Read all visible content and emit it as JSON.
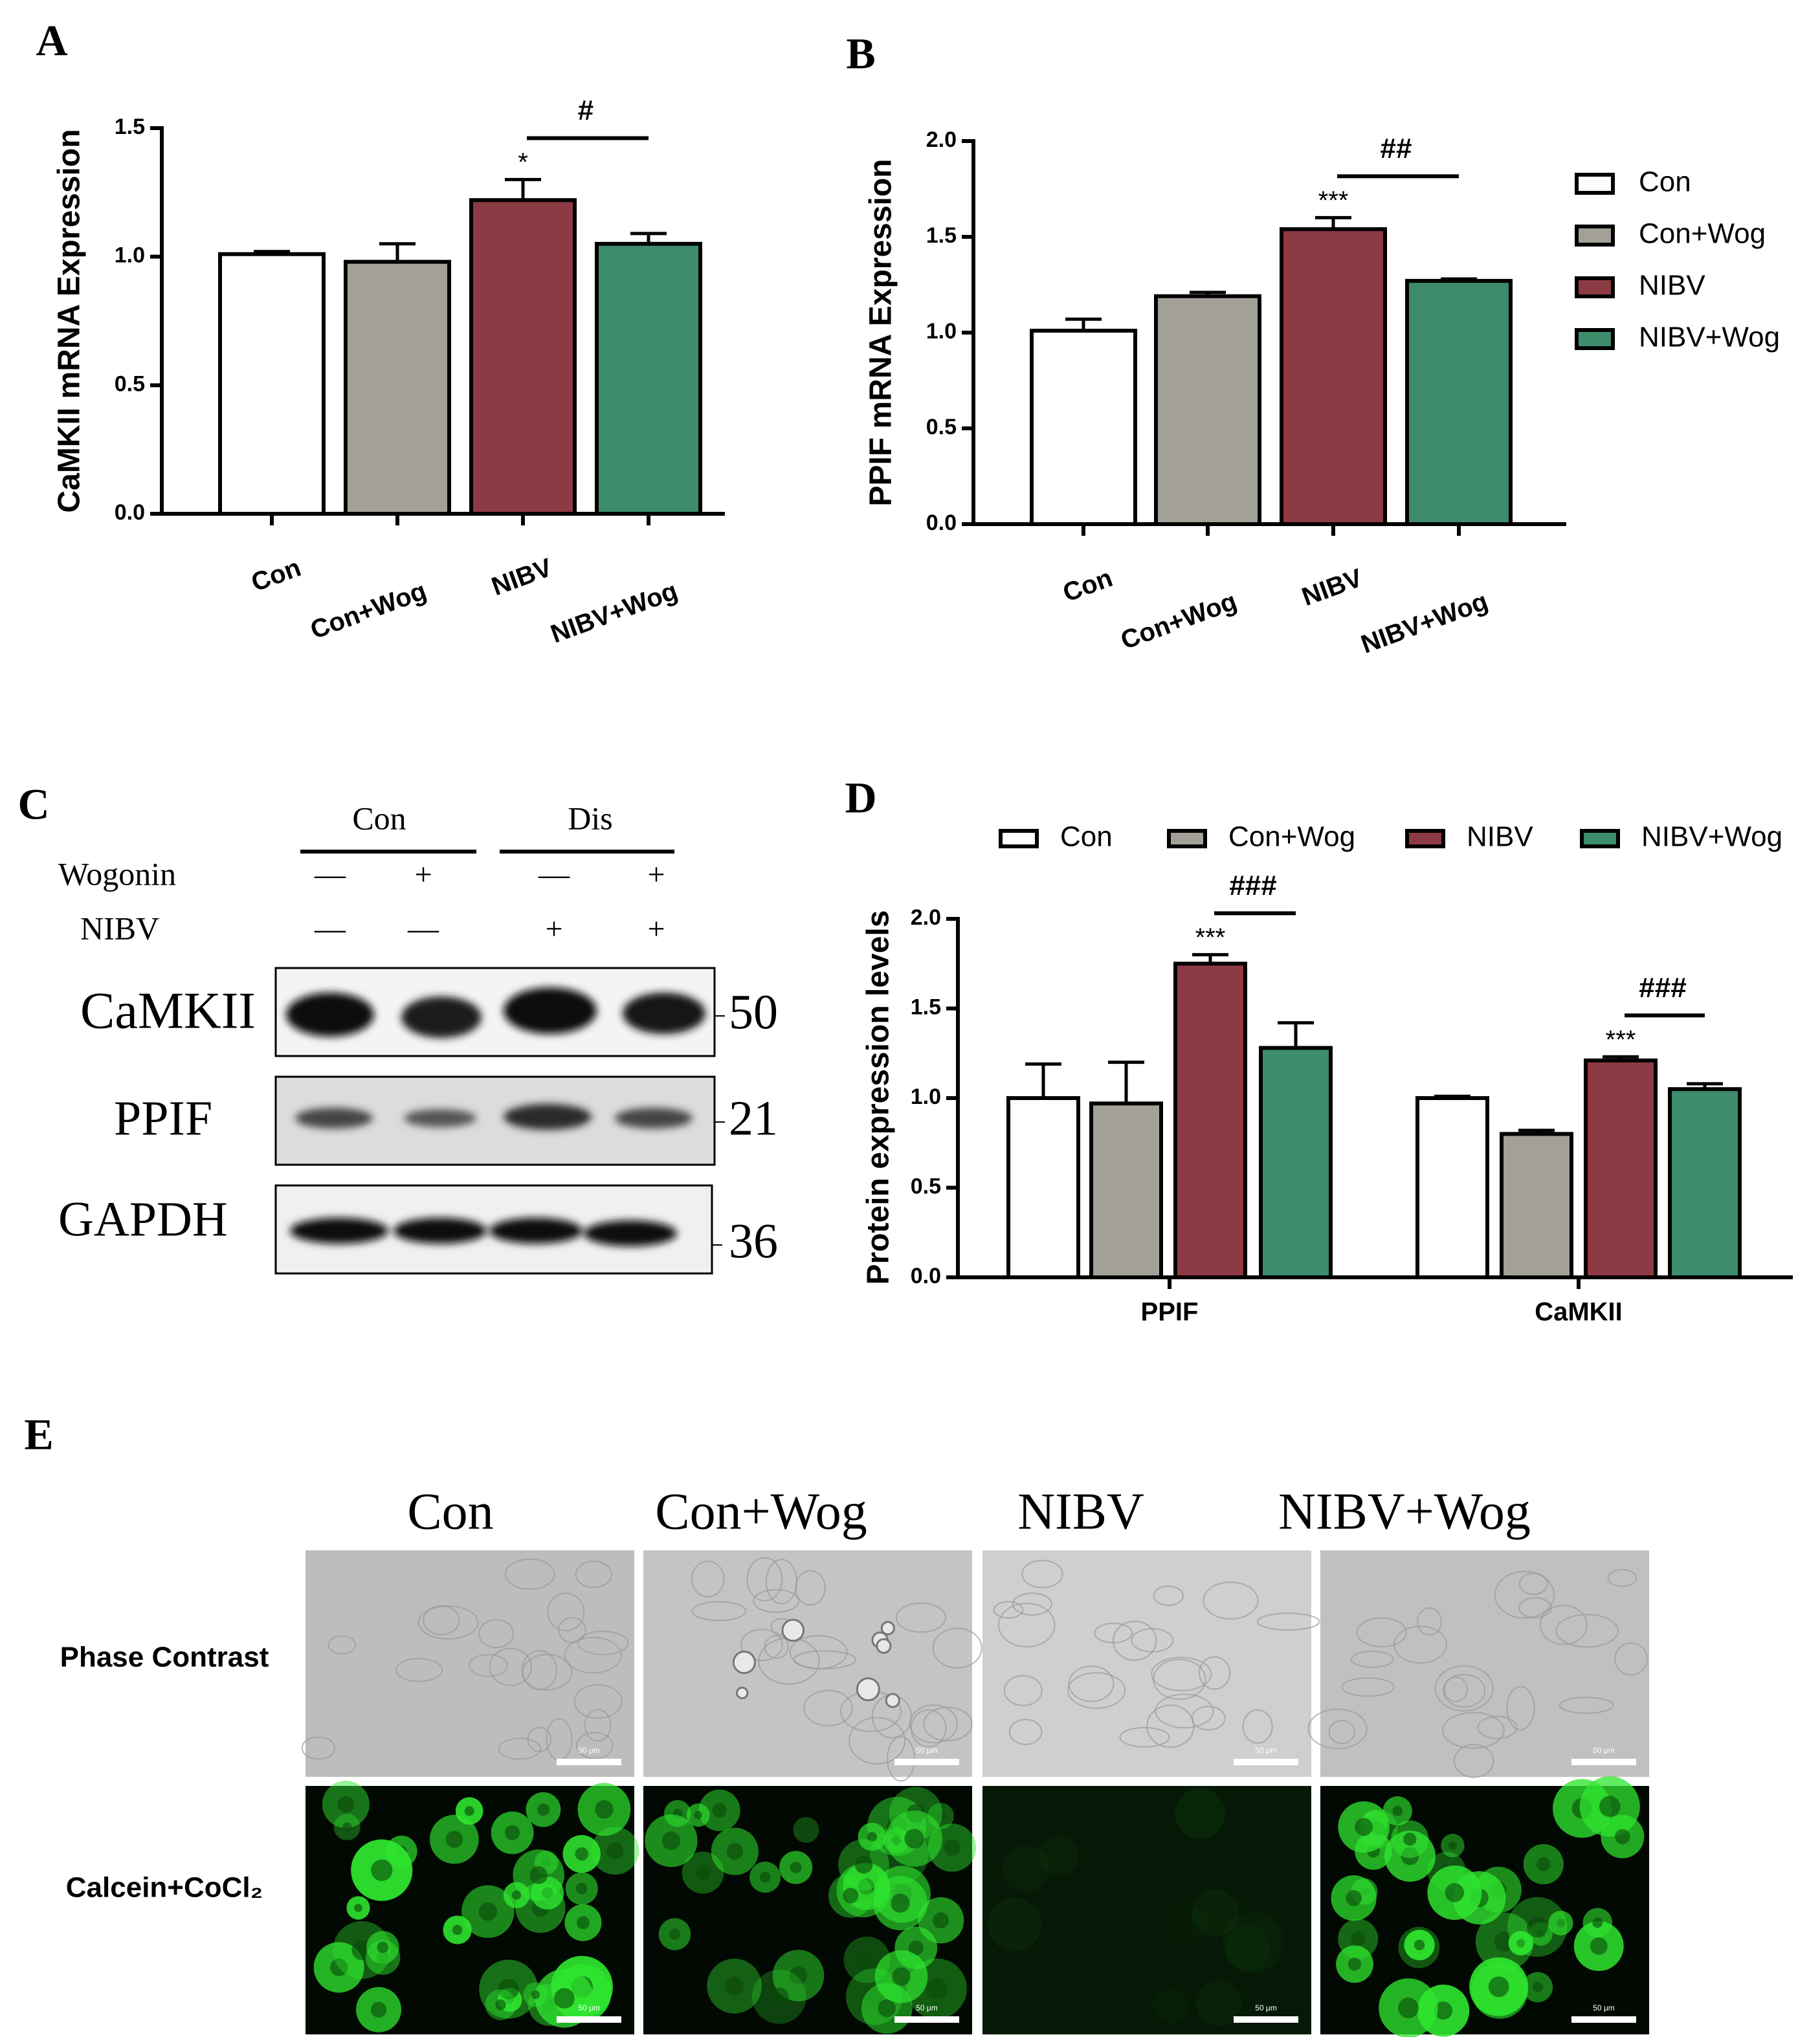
{
  "panel_labels": [
    "A",
    "B",
    "C",
    "D",
    "E"
  ],
  "chart_data": [
    {
      "type": "bar",
      "y_label": "CaMKII mRNA Expression",
      "categories": [
        "Con",
        "Con+Wog",
        "NIBV",
        "NIBV+Wog"
      ],
      "values": [
        1.01,
        0.98,
        1.22,
        1.05
      ],
      "errors": [
        0.01,
        0.07,
        0.08,
        0.04
      ],
      "colors": [
        "#ffffff",
        "#a3a197",
        "#8c3a43",
        "#3d8c6b"
      ],
      "ylim": [
        0,
        1.5
      ],
      "yticks": [
        {
          "value": 0,
          "label": "0.0"
        },
        {
          "value": 0.5,
          "label": "0.5"
        },
        {
          "value": 1,
          "label": "1.0"
        },
        {
          "value": 1.5,
          "label": "1.5"
        }
      ],
      "annotations": [
        {
          "text": "*",
          "over": "NIBV"
        },
        {
          "text": "#",
          "between": [
            "NIBV",
            "NIBV+Wog"
          ]
        }
      ]
    },
    {
      "type": "bar",
      "y_label": "PPIF mRNA Expression",
      "categories": [
        "Con",
        "Con+Wog",
        "NIBV",
        "NIBV+Wog"
      ],
      "values": [
        1.01,
        1.19,
        1.54,
        1.27
      ],
      "errors": [
        0.06,
        0.02,
        0.06,
        0.01
      ],
      "colors": [
        "#ffffff",
        "#a3a197",
        "#8c3a43",
        "#3d8c6b"
      ],
      "ylim": [
        0,
        2
      ],
      "yticks": [
        {
          "value": 0,
          "label": "0.0"
        },
        {
          "value": 0.5,
          "label": "0.5"
        },
        {
          "value": 1,
          "label": "1.0"
        },
        {
          "value": 1.5,
          "label": "1.5"
        },
        {
          "value": 2,
          "label": "2.0"
        }
      ],
      "legend": "right",
      "annotations": [
        {
          "text": "***",
          "over": "NIBV"
        },
        {
          "text": "##",
          "between": [
            "NIBV",
            "NIBV+Wog"
          ]
        }
      ]
    },
    {
      "type": "grouped_bar",
      "y_label": "Protein expression levels",
      "categories": [
        "PPIF",
        "CaMKII"
      ],
      "series": [
        {
          "name": "Con",
          "color": "#ffffff",
          "values": [
            1.0,
            1.0
          ],
          "errors": [
            0.19,
            0.01
          ]
        },
        {
          "name": "Con+Wog",
          "color": "#a3a197",
          "values": [
            0.97,
            0.8
          ],
          "errors": [
            0.23,
            0.02
          ]
        },
        {
          "name": "NIBV",
          "color": "#8c3a43",
          "values": [
            1.75,
            1.21
          ],
          "errors": [
            0.05,
            0.02
          ]
        },
        {
          "name": "NIBV+Wog",
          "color": "#3d8c6b",
          "values": [
            1.28,
            1.05
          ],
          "errors": [
            0.14,
            0.03
          ]
        }
      ],
      "ylim": [
        0,
        2
      ],
      "yticks": [
        {
          "value": 0,
          "label": "0.0"
        },
        {
          "value": 0.5,
          "label": "0.5"
        },
        {
          "value": 1,
          "label": "1.0"
        },
        {
          "value": 1.5,
          "label": "1.5"
        },
        {
          "value": 2,
          "label": "2.0"
        }
      ],
      "legend": "top",
      "annotations": [
        {
          "text": "***",
          "group": "PPIF",
          "over": "NIBV"
        },
        {
          "text": "###",
          "group": "PPIF",
          "between": [
            "NIBV",
            "NIBV+Wog"
          ]
        },
        {
          "text": "***",
          "group": "CaMKII",
          "over": "NIBV"
        },
        {
          "text": "###",
          "group": "CaMKII",
          "between": [
            "NIBV",
            "NIBV+Wog"
          ]
        }
      ]
    }
  ],
  "western_blot": {
    "groups": [
      "Con",
      "Dis"
    ],
    "rows": [
      {
        "label": "Wogonin",
        "marks": [
          "—",
          "+",
          "—",
          "+"
        ]
      },
      {
        "label": "NIBV",
        "marks": [
          "—",
          "—",
          "+",
          "+"
        ]
      }
    ],
    "bands": [
      {
        "label": "CaMKII",
        "size": "50"
      },
      {
        "label": "PPIF",
        "size": "21"
      },
      {
        "label": "GAPDH",
        "size": "36"
      }
    ]
  },
  "imaging": {
    "columns": [
      "Con",
      "Con+Wog",
      "NIBV",
      "NIBV+Wog"
    ],
    "rows": [
      "Phase Contrast",
      "Calcein+CoCl₂"
    ],
    "scale_bar": "50 μm"
  }
}
